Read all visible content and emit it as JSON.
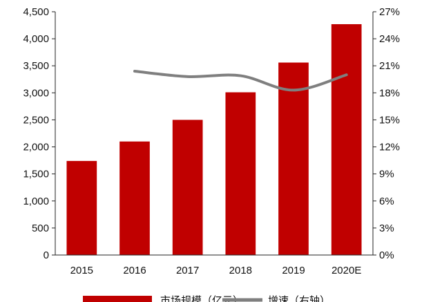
{
  "chart_data": {
    "type": "bar",
    "title": "",
    "categories": [
      "2015",
      "2016",
      "2017",
      "2018",
      "2019",
      "2020E"
    ],
    "series": [
      {
        "name": "市场规模（亿元）",
        "type": "bar",
        "axis": "left",
        "color": "#c00000",
        "values": [
          1740,
          2100,
          2500,
          3010,
          3560,
          4270
        ]
      },
      {
        "name": "增速（右轴）",
        "type": "line",
        "axis": "right",
        "color": "#7f7f7f",
        "values": [
          null,
          20.4,
          19.8,
          19.9,
          18.3,
          20.0
        ]
      }
    ],
    "y_left": {
      "min": 0,
      "max": 4500,
      "ticks": [
        0,
        500,
        1000,
        1500,
        2000,
        2500,
        3000,
        3500,
        4000,
        4500
      ],
      "tick_labels": [
        "0",
        "500",
        "1,000",
        "1,500",
        "2,000",
        "2,500",
        "3,000",
        "3,500",
        "4,000",
        "4,500"
      ]
    },
    "y_right": {
      "min": 0,
      "max": 27,
      "unit": "%",
      "ticks": [
        0,
        3,
        6,
        9,
        12,
        15,
        18,
        21,
        24,
        27
      ],
      "tick_labels": [
        "0%",
        "3%",
        "6%",
        "9%",
        "12%",
        "15%",
        "18%",
        "21%",
        "24%",
        "27%"
      ]
    },
    "grid": false,
    "legend_position": "bottom"
  }
}
